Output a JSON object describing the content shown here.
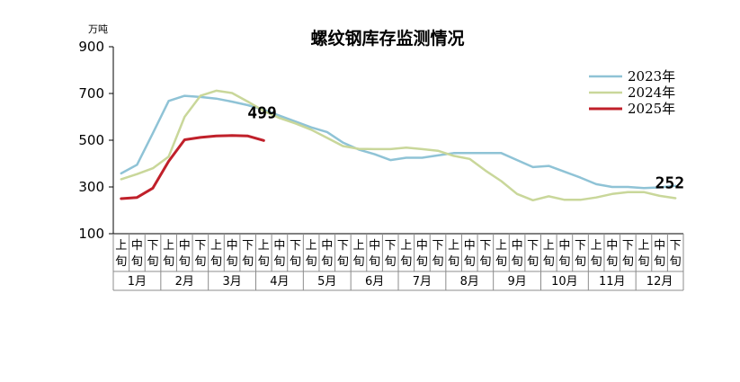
{
  "chart_data": {
    "type": "line",
    "title": "螺纹钢库存监测情况",
    "unit": "万吨",
    "ylim": [
      100,
      900
    ],
    "yticks": [
      100,
      300,
      500,
      700,
      900
    ],
    "period_labels": [
      "上旬",
      "中旬",
      "下旬"
    ],
    "months": [
      "1月",
      "2月",
      "3月",
      "4月",
      "5月",
      "6月",
      "7月",
      "8月",
      "9月",
      "10月",
      "11月",
      "12月"
    ],
    "grid": false,
    "legend_position": "top-right",
    "series": [
      {
        "name": "2023年",
        "color": "#8fc3d6",
        "values": [
          358,
          395,
          530,
          668,
          690,
          685,
          678,
          665,
          650,
          630,
          605,
          580,
          555,
          535,
          490,
          460,
          440,
          415,
          425,
          425,
          435,
          445,
          445,
          445,
          445,
          415,
          385,
          390,
          365,
          340,
          312,
          300,
          300,
          295,
          298,
          305
        ]
      },
      {
        "name": "2024年",
        "color": "#c9d79a",
        "values": [
          333,
          355,
          380,
          430,
          600,
          690,
          712,
          702,
          665,
          625,
          595,
          572,
          545,
          510,
          475,
          463,
          462,
          462,
          468,
          462,
          455,
          433,
          420,
          370,
          325,
          270,
          243,
          260,
          245,
          245,
          255,
          270,
          278,
          278,
          262,
          252
        ]
      },
      {
        "name": "2025年",
        "color": "#c0202a",
        "values": [
          250,
          255,
          295,
          410,
          502,
          512,
          518,
          520,
          518,
          499
        ]
      }
    ],
    "annotations": [
      {
        "text": "499",
        "series": "2025年",
        "index": 9
      },
      {
        "text": "252",
        "series": "2024年",
        "index": 35
      }
    ]
  }
}
